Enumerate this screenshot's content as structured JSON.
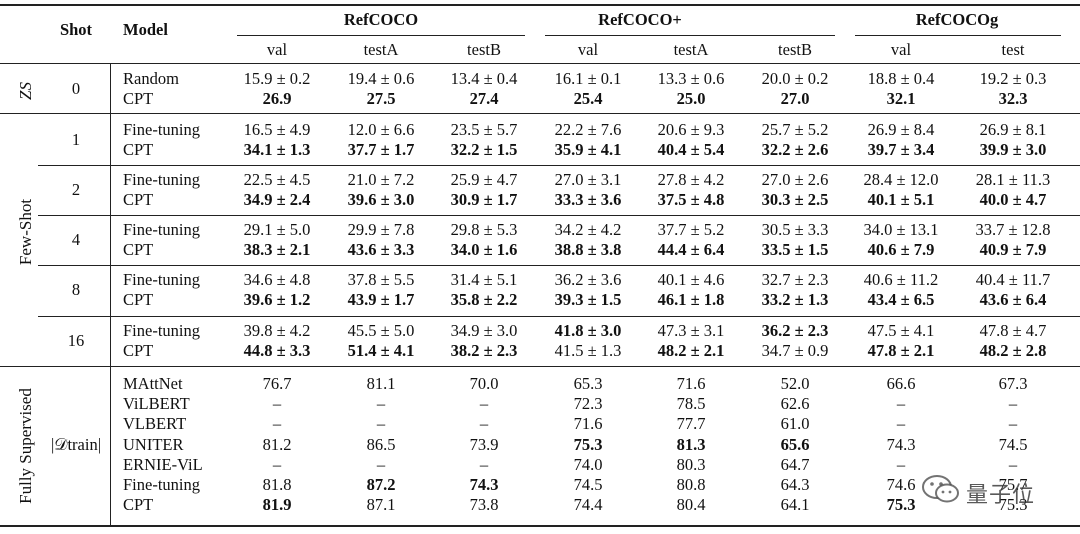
{
  "headers": {
    "shot": "Shot",
    "model": "Model",
    "groups": [
      {
        "name": "RefCOCO",
        "subs": [
          "val",
          "testA",
          "testB"
        ]
      },
      {
        "name": "RefCOCO+",
        "subs": [
          "val",
          "testA",
          "testB"
        ]
      },
      {
        "name": "RefCOCOg",
        "subs": [
          "val",
          "test"
        ]
      }
    ]
  },
  "sections": [
    {
      "label": "ZS",
      "groups": [
        {
          "shot": "0",
          "rows": [
            {
              "model": "Random",
              "cells": [
                {
                  "v": "15.9 ± 0.2",
                  "b": false
                },
                {
                  "v": "19.4 ± 0.6",
                  "b": false
                },
                {
                  "v": "13.4 ± 0.4",
                  "b": false
                },
                {
                  "v": "16.1 ± 0.1",
                  "b": false
                },
                {
                  "v": "13.3 ± 0.6",
                  "b": false
                },
                {
                  "v": "20.0 ± 0.2",
                  "b": false
                },
                {
                  "v": "18.8 ±  0.4",
                  "b": false
                },
                {
                  "v": "19.2 ±  0.3",
                  "b": false
                }
              ]
            },
            {
              "model": "CPT",
              "cells": [
                {
                  "v": "26.9",
                  "b": true
                },
                {
                  "v": "27.5",
                  "b": true
                },
                {
                  "v": "27.4",
                  "b": true
                },
                {
                  "v": "25.4",
                  "b": true
                },
                {
                  "v": "25.0",
                  "b": true
                },
                {
                  "v": "27.0",
                  "b": true
                },
                {
                  "v": "32.1",
                  "b": true
                },
                {
                  "v": "32.3",
                  "b": true
                }
              ]
            }
          ]
        }
      ]
    },
    {
      "label": "Few-Shot",
      "groups": [
        {
          "shot": "1",
          "rows": [
            {
              "model": "Fine-tuning",
              "cells": [
                {
                  "v": "16.5 ± 4.9",
                  "b": false
                },
                {
                  "v": "12.0 ± 6.6",
                  "b": false
                },
                {
                  "v": "23.5 ± 5.7",
                  "b": false
                },
                {
                  "v": "22.2 ± 7.6",
                  "b": false
                },
                {
                  "v": "20.6 ± 9.3",
                  "b": false
                },
                {
                  "v": "25.7 ± 5.2",
                  "b": false
                },
                {
                  "v": "26.9 ±  8.4",
                  "b": false
                },
                {
                  "v": "26.9 ±  8.1",
                  "b": false
                }
              ]
            },
            {
              "model": "CPT",
              "cells": [
                {
                  "v": "34.1 ± 1.3",
                  "b": true
                },
                {
                  "v": "37.7 ± 1.7",
                  "b": true
                },
                {
                  "v": "32.2 ± 1.5",
                  "b": true
                },
                {
                  "v": "35.9 ± 4.1",
                  "b": true
                },
                {
                  "v": "40.4 ± 5.4",
                  "b": true
                },
                {
                  "v": "32.2 ± 2.6",
                  "b": true
                },
                {
                  "v": "39.7 ±  3.4",
                  "b": true
                },
                {
                  "v": "39.9 ±  3.0",
                  "b": true
                }
              ]
            }
          ]
        },
        {
          "shot": "2",
          "rows": [
            {
              "model": "Fine-tuning",
              "cells": [
                {
                  "v": "22.5 ± 4.5",
                  "b": false
                },
                {
                  "v": "21.0 ± 7.2",
                  "b": false
                },
                {
                  "v": "25.9 ± 4.7",
                  "b": false
                },
                {
                  "v": "27.0 ± 3.1",
                  "b": false
                },
                {
                  "v": "27.8 ± 4.2",
                  "b": false
                },
                {
                  "v": "27.0 ± 2.6",
                  "b": false
                },
                {
                  "v": "28.4 ± 12.0",
                  "b": false
                },
                {
                  "v": "28.1 ± 11.3",
                  "b": false
                }
              ]
            },
            {
              "model": "CPT",
              "cells": [
                {
                  "v": "34.9 ± 2.4",
                  "b": true
                },
                {
                  "v": "39.6 ± 3.0",
                  "b": true
                },
                {
                  "v": "30.9 ± 1.7",
                  "b": true
                },
                {
                  "v": "33.3 ± 3.6",
                  "b": true
                },
                {
                  "v": "37.5 ± 4.8",
                  "b": true
                },
                {
                  "v": "30.3 ± 2.5",
                  "b": true
                },
                {
                  "v": "40.1 ±  5.1",
                  "b": true
                },
                {
                  "v": "40.0 ±  4.7",
                  "b": true
                }
              ]
            }
          ]
        },
        {
          "shot": "4",
          "rows": [
            {
              "model": "Fine-tuning",
              "cells": [
                {
                  "v": "29.1 ± 5.0",
                  "b": false
                },
                {
                  "v": "29.9 ± 7.8",
                  "b": false
                },
                {
                  "v": "29.8 ± 5.3",
                  "b": false
                },
                {
                  "v": "34.2 ± 4.2",
                  "b": false
                },
                {
                  "v": "37.7 ± 5.2",
                  "b": false
                },
                {
                  "v": "30.5 ± 3.3",
                  "b": false
                },
                {
                  "v": "34.0 ± 13.1",
                  "b": false
                },
                {
                  "v": "33.7 ± 12.8",
                  "b": false
                }
              ]
            },
            {
              "model": "CPT",
              "cells": [
                {
                  "v": "38.3 ± 2.1",
                  "b": true
                },
                {
                  "v": "43.6 ± 3.3",
                  "b": true
                },
                {
                  "v": "34.0 ± 1.6",
                  "b": true
                },
                {
                  "v": "38.8 ± 3.8",
                  "b": true
                },
                {
                  "v": "44.4 ± 6.4",
                  "b": true
                },
                {
                  "v": "33.5 ± 1.5",
                  "b": true
                },
                {
                  "v": "40.6 ±  7.9",
                  "b": true
                },
                {
                  "v": "40.9 ±  7.9",
                  "b": true
                }
              ]
            }
          ]
        },
        {
          "shot": "8",
          "rows": [
            {
              "model": "Fine-tuning",
              "cells": [
                {
                  "v": "34.6 ± 4.8",
                  "b": false
                },
                {
                  "v": "37.8 ± 5.5",
                  "b": false
                },
                {
                  "v": "31.4 ± 5.1",
                  "b": false
                },
                {
                  "v": "36.2 ± 3.6",
                  "b": false
                },
                {
                  "v": "40.1 ± 4.6",
                  "b": false
                },
                {
                  "v": "32.7 ± 2.3",
                  "b": false
                },
                {
                  "v": "40.6 ± 11.2",
                  "b": false
                },
                {
                  "v": "40.4 ± 11.7",
                  "b": false
                }
              ]
            },
            {
              "model": "CPT",
              "cells": [
                {
                  "v": "39.6 ± 1.2",
                  "b": true
                },
                {
                  "v": "43.9 ± 1.7",
                  "b": true
                },
                {
                  "v": "35.8 ± 2.2",
                  "b": true
                },
                {
                  "v": "39.3 ± 1.5",
                  "b": true
                },
                {
                  "v": "46.1 ± 1.8",
                  "b": true
                },
                {
                  "v": "33.2 ± 1.3",
                  "b": true
                },
                {
                  "v": "43.4 ±  6.5",
                  "b": true
                },
                {
                  "v": "43.6 ±  6.4",
                  "b": true
                }
              ]
            }
          ]
        },
        {
          "shot": "16",
          "rows": [
            {
              "model": "Fine-tuning",
              "cells": [
                {
                  "v": "39.8 ± 4.2",
                  "b": false
                },
                {
                  "v": "45.5 ± 5.0",
                  "b": false
                },
                {
                  "v": "34.9 ± 3.0",
                  "b": false
                },
                {
                  "v": "41.8 ± 3.0",
                  "b": true
                },
                {
                  "v": "47.3 ± 3.1",
                  "b": false
                },
                {
                  "v": "36.2 ± 2.3",
                  "b": true
                },
                {
                  "v": "47.5 ±  4.1",
                  "b": false
                },
                {
                  "v": "47.8 ±  4.7",
                  "b": false
                }
              ]
            },
            {
              "model": "CPT",
              "cells": [
                {
                  "v": "44.8 ± 3.3",
                  "b": true
                },
                {
                  "v": "51.4 ± 4.1",
                  "b": true
                },
                {
                  "v": "38.2 ± 2.3",
                  "b": true
                },
                {
                  "v": "41.5 ± 1.3",
                  "b": false
                },
                {
                  "v": "48.2 ± 2.1",
                  "b": true
                },
                {
                  "v": "34.7 ± 0.9",
                  "b": false
                },
                {
                  "v": "47.8 ±  2.1",
                  "b": true
                },
                {
                  "v": "48.2 ±  2.8",
                  "b": true
                }
              ]
            }
          ]
        }
      ]
    },
    {
      "label": "Fully Supervised",
      "groups": [
        {
          "shot": "|𝒟train|",
          "rows": [
            {
              "model": "MAttNet",
              "cells": [
                {
                  "v": "76.7",
                  "b": false
                },
                {
                  "v": "81.1",
                  "b": false
                },
                {
                  "v": "70.0",
                  "b": false
                },
                {
                  "v": "65.3",
                  "b": false
                },
                {
                  "v": "71.6",
                  "b": false
                },
                {
                  "v": "52.0",
                  "b": false
                },
                {
                  "v": "66.6",
                  "b": false
                },
                {
                  "v": "67.3",
                  "b": false
                }
              ]
            },
            {
              "model": "ViLBERT",
              "cells": [
                {
                  "v": "–",
                  "b": false
                },
                {
                  "v": "–",
                  "b": false
                },
                {
                  "v": "–",
                  "b": false
                },
                {
                  "v": "72.3",
                  "b": false
                },
                {
                  "v": "78.5",
                  "b": false
                },
                {
                  "v": "62.6",
                  "b": false
                },
                {
                  "v": "–",
                  "b": false
                },
                {
                  "v": "–",
                  "b": false
                }
              ]
            },
            {
              "model": "VLBERT",
              "cells": [
                {
                  "v": "–",
                  "b": false
                },
                {
                  "v": "–",
                  "b": false
                },
                {
                  "v": "–",
                  "b": false
                },
                {
                  "v": "71.6",
                  "b": false
                },
                {
                  "v": "77.7",
                  "b": false
                },
                {
                  "v": "61.0",
                  "b": false
                },
                {
                  "v": "–",
                  "b": false
                },
                {
                  "v": "–",
                  "b": false
                }
              ]
            },
            {
              "model": "UNITER",
              "cells": [
                {
                  "v": "81.2",
                  "b": false
                },
                {
                  "v": "86.5",
                  "b": false
                },
                {
                  "v": "73.9",
                  "b": false
                },
                {
                  "v": "75.3",
                  "b": true
                },
                {
                  "v": "81.3",
                  "b": true
                },
                {
                  "v": "65.6",
                  "b": true
                },
                {
                  "v": "74.3",
                  "b": false
                },
                {
                  "v": "74.5",
                  "b": false
                }
              ]
            },
            {
              "model": "ERNIE-ViL",
              "cells": [
                {
                  "v": "–",
                  "b": false
                },
                {
                  "v": "–",
                  "b": false
                },
                {
                  "v": "–",
                  "b": false
                },
                {
                  "v": "74.0",
                  "b": false
                },
                {
                  "v": "80.3",
                  "b": false
                },
                {
                  "v": "64.7",
                  "b": false
                },
                {
                  "v": "–",
                  "b": false
                },
                {
                  "v": "–",
                  "b": false
                }
              ]
            },
            {
              "model": "Fine-tuning",
              "cells": [
                {
                  "v": "81.8",
                  "b": false
                },
                {
                  "v": "87.2",
                  "b": true
                },
                {
                  "v": "74.3",
                  "b": true
                },
                {
                  "v": "74.5",
                  "b": false
                },
                {
                  "v": "80.8",
                  "b": false
                },
                {
                  "v": "64.3",
                  "b": false
                },
                {
                  "v": "74.6",
                  "b": false
                },
                {
                  "v": "75.7",
                  "b": false
                }
              ]
            },
            {
              "model": "CPT",
              "cells": [
                {
                  "v": "81.9",
                  "b": true
                },
                {
                  "v": "87.1",
                  "b": false
                },
                {
                  "v": "73.8",
                  "b": false
                },
                {
                  "v": "74.4",
                  "b": false
                },
                {
                  "v": "80.4",
                  "b": false
                },
                {
                  "v": "64.1",
                  "b": false
                },
                {
                  "v": "75.3",
                  "b": true
                },
                {
                  "v": "75.3",
                  "b": false
                }
              ]
            }
          ]
        }
      ]
    }
  ],
  "watermark": {
    "text": "量子位",
    "icon": "wechat-logo-icon"
  }
}
